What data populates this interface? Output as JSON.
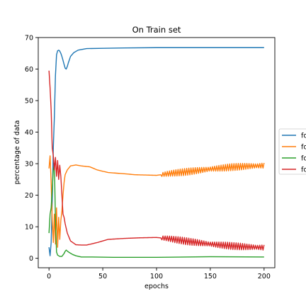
{
  "chart_data": {
    "type": "line",
    "title": "On Train set",
    "xlabel": "epochs",
    "ylabel": "percentage of data",
    "xlim": [
      -10,
      210
    ],
    "ylim": [
      -3,
      70
    ],
    "xticks": [
      0,
      50,
      100,
      150,
      200
    ],
    "yticks": [
      0,
      10,
      20,
      30,
      40,
      50,
      60,
      70
    ],
    "grid": false,
    "legend_position": "right, partially cut off",
    "series": [
      {
        "name": "fo",
        "color": "#1f77b4",
        "values": [
          [
            0,
            3.5
          ],
          [
            1,
            0.8
          ],
          [
            2,
            5
          ],
          [
            3,
            18
          ],
          [
            4,
            35
          ],
          [
            5,
            45
          ],
          [
            6,
            58
          ],
          [
            7,
            64.5
          ],
          [
            8,
            65.8
          ],
          [
            9,
            66
          ],
          [
            10,
            65.7
          ],
          [
            11,
            65
          ],
          [
            12,
            64
          ],
          [
            13,
            62.8
          ],
          [
            14,
            61.5
          ],
          [
            15,
            60.3
          ],
          [
            16,
            60
          ],
          [
            17,
            60.8
          ],
          [
            18,
            62
          ],
          [
            20,
            64
          ],
          [
            23,
            65.2
          ],
          [
            27,
            66
          ],
          [
            35,
            66.5
          ],
          [
            50,
            66.6
          ],
          [
            70,
            66.7
          ],
          [
            100,
            66.8
          ],
          [
            150,
            66.8
          ],
          [
            200,
            66.8
          ]
        ]
      },
      {
        "name": "fo",
        "color": "#ff7f0e",
        "values": [
          [
            0,
            28.5
          ],
          [
            1,
            32.5
          ],
          [
            2,
            24
          ],
          [
            3,
            12
          ],
          [
            4,
            5
          ],
          [
            5,
            14
          ],
          [
            6,
            4.5
          ],
          [
            7,
            16
          ],
          [
            8,
            3.5
          ],
          [
            9,
            13
          ],
          [
            10,
            6
          ],
          [
            11,
            12
          ],
          [
            12,
            15
          ],
          [
            13,
            20
          ],
          [
            14,
            24
          ],
          [
            15,
            26.5
          ],
          [
            17,
            28
          ],
          [
            20,
            29.3
          ],
          [
            25,
            29.6
          ],
          [
            30,
            29.3
          ],
          [
            38,
            29
          ],
          [
            45,
            28
          ],
          [
            55,
            27.2
          ],
          [
            70,
            26.8
          ],
          [
            80,
            26.5
          ],
          [
            100,
            26.3
          ],
          [
            110,
            26.8
          ],
          [
            130,
            27.5
          ],
          [
            150,
            28.3
          ],
          [
            170,
            28.9
          ],
          [
            185,
            29.2
          ],
          [
            200,
            29.4
          ]
        ],
        "oscillation_note": "small fast oscillation of about ±1 around trend between epochs 105–200"
      },
      {
        "name": "fo",
        "color": "#2ca02c",
        "values": [
          [
            0,
            8
          ],
          [
            1,
            14
          ],
          [
            2,
            16
          ],
          [
            3,
            22
          ],
          [
            4,
            28
          ],
          [
            5,
            30
          ],
          [
            6,
            12
          ],
          [
            7,
            2
          ],
          [
            8,
            1
          ],
          [
            9,
            0.8
          ],
          [
            10,
            0.6
          ],
          [
            12,
            0.6
          ],
          [
            14,
            1.5
          ],
          [
            15,
            2.2
          ],
          [
            16,
            2.6
          ],
          [
            17,
            2.3
          ],
          [
            19,
            1.8
          ],
          [
            22,
            1.2
          ],
          [
            25,
            0.8
          ],
          [
            30,
            0.4
          ],
          [
            40,
            0.4
          ],
          [
            60,
            0.3
          ],
          [
            100,
            0.3
          ],
          [
            150,
            0.5
          ],
          [
            200,
            0.4
          ]
        ]
      },
      {
        "name": "fo",
        "color": "#d62728",
        "values": [
          [
            0,
            59.5
          ],
          [
            1,
            54
          ],
          [
            2,
            47
          ],
          [
            3,
            35
          ],
          [
            4,
            32.5
          ],
          [
            5,
            28
          ],
          [
            6,
            32
          ],
          [
            7,
            26
          ],
          [
            8,
            31
          ],
          [
            9,
            25
          ],
          [
            10,
            29.5
          ],
          [
            11,
            26
          ],
          [
            12,
            20
          ],
          [
            13,
            14
          ],
          [
            14,
            13
          ],
          [
            15,
            11
          ],
          [
            17,
            8
          ],
          [
            20,
            5.5
          ],
          [
            25,
            4.3
          ],
          [
            30,
            4.2
          ],
          [
            35,
            4.2
          ],
          [
            45,
            5
          ],
          [
            55,
            6
          ],
          [
            70,
            6.3
          ],
          [
            85,
            6.5
          ],
          [
            100,
            6.6
          ],
          [
            110,
            6.3
          ],
          [
            130,
            5.3
          ],
          [
            150,
            4.5
          ],
          [
            170,
            3.9
          ],
          [
            185,
            3.6
          ],
          [
            200,
            3.4
          ]
        ],
        "oscillation_note": "small fast oscillation of about ±1 around trend between epochs 105–200"
      }
    ]
  }
}
